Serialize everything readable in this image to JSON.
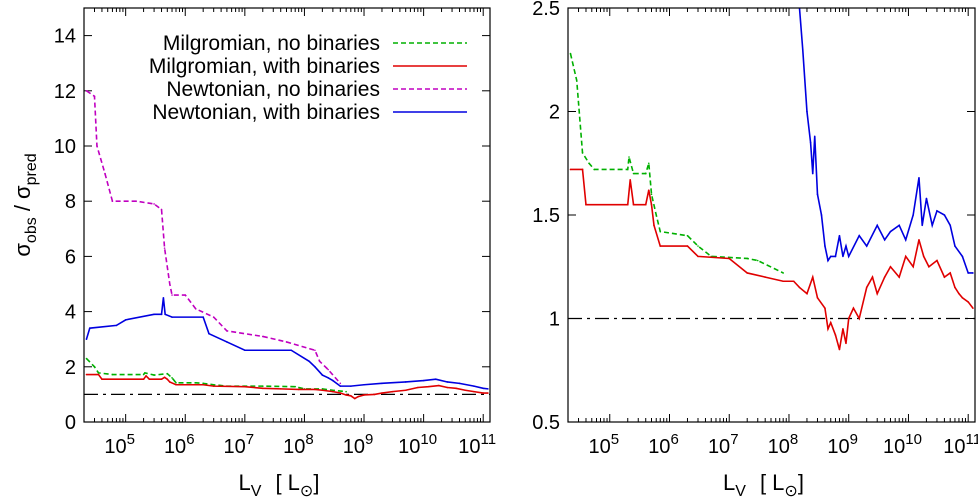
{
  "chart_data": [
    {
      "type": "line",
      "ylabel": "σobs / σpred",
      "xlabel": "LV [L⊙]",
      "x_scale": "log",
      "xlim": [
        20000,
        130000000000
      ],
      "ylim": [
        0,
        15
      ],
      "y_ticks": [
        "0",
        "2",
        "4",
        "6",
        "8",
        "10",
        "12",
        "14"
      ],
      "y_tick_values": [
        0,
        2,
        4,
        6,
        8,
        10,
        12,
        14
      ],
      "x_tick_exponents": [
        "5",
        "6",
        "7",
        "8",
        "9",
        "10",
        "11"
      ],
      "legend_position": "top-right",
      "reference_line": {
        "y": 1,
        "style": "dash-dot",
        "color": "#000000"
      },
      "series": [
        {
          "name": "Milgromian, no binaries",
          "color": "#00b000",
          "dash": "dashed",
          "points": [
            [
              22000,
              2.3
            ],
            [
              30000,
              2.0
            ],
            [
              35000,
              1.78
            ],
            [
              60000,
              1.72
            ],
            [
              200000,
              1.72
            ],
            [
              210000,
              1.78
            ],
            [
              300000,
              1.7
            ],
            [
              500000,
              1.75
            ],
            [
              600000,
              1.6
            ],
            [
              700000,
              1.42
            ],
            [
              1500000,
              1.42
            ],
            [
              2000000,
              1.4
            ],
            [
              3000000,
              1.35
            ],
            [
              5000000,
              1.3
            ],
            [
              10000000,
              1.3
            ],
            [
              20000000,
              1.3
            ],
            [
              70000000,
              1.28
            ],
            [
              100000000,
              1.2
            ],
            [
              200000000,
              1.2
            ],
            [
              300000000,
              1.15
            ],
            [
              500000000,
              1.1
            ]
          ]
        },
        {
          "name": "Milgromian, with binaries",
          "color": "#e00000",
          "dash": "solid",
          "points": [
            [
              22000,
              1.72
            ],
            [
              35000,
              1.72
            ],
            [
              40000,
              1.55
            ],
            [
              200000,
              1.55
            ],
            [
              220000,
              1.67
            ],
            [
              250000,
              1.55
            ],
            [
              400000,
              1.55
            ],
            [
              450000,
              1.62
            ],
            [
              500000,
              1.55
            ],
            [
              550000,
              1.45
            ],
            [
              700000,
              1.35
            ],
            [
              2000000,
              1.35
            ],
            [
              3000000,
              1.3
            ],
            [
              10000000,
              1.28
            ],
            [
              20000000,
              1.22
            ],
            [
              40000000,
              1.2
            ],
            [
              80000000,
              1.18
            ],
            [
              150000000,
              1.18
            ],
            [
              200000000,
              1.15
            ],
            [
              300000000,
              1.1
            ],
            [
              400000000,
              1.05
            ],
            [
              500000000,
              0.98
            ],
            [
              600000000,
              0.95
            ],
            [
              700000000,
              0.85
            ],
            [
              800000000,
              0.92
            ],
            [
              1000000000,
              0.98
            ],
            [
              1500000000,
              1.0
            ],
            [
              2000000000,
              1.05
            ],
            [
              3000000000,
              1.1
            ],
            [
              5000000000,
              1.15
            ],
            [
              8000000000,
              1.25
            ],
            [
              12000000000,
              1.28
            ],
            [
              18000000000,
              1.32
            ],
            [
              25000000000,
              1.25
            ],
            [
              35000000000,
              1.22
            ],
            [
              50000000000,
              1.15
            ],
            [
              70000000000,
              1.1
            ],
            [
              100000000000,
              1.05
            ],
            [
              120000000000,
              1.05
            ]
          ]
        },
        {
          "name": "Newtonian, no binaries",
          "color": "#c000c0",
          "dash": "dashed",
          "points": [
            [
              22000,
              12.0
            ],
            [
              30000,
              11.8
            ],
            [
              33000,
              10.0
            ],
            [
              45000,
              9.0
            ],
            [
              60000,
              8.0
            ],
            [
              150000,
              8.0
            ],
            [
              300000,
              7.9
            ],
            [
              400000,
              7.7
            ],
            [
              450000,
              6.3
            ],
            [
              550000,
              5.0
            ],
            [
              600000,
              4.6
            ],
            [
              1000000,
              4.6
            ],
            [
              1500000,
              4.1
            ],
            [
              3000000,
              3.8
            ],
            [
              5000000,
              3.3
            ],
            [
              20000000,
              3.1
            ],
            [
              50000000,
              2.9
            ],
            [
              150000000,
              2.6
            ],
            [
              180000000,
              2.2
            ],
            [
              250000000,
              1.9
            ],
            [
              400000000,
              1.4
            ]
          ]
        },
        {
          "name": "Newtonian, with binaries",
          "color": "#0000e0",
          "dash": "solid",
          "points": [
            [
              22000,
              3.0
            ],
            [
              25000,
              3.4
            ],
            [
              70000,
              3.5
            ],
            [
              100000,
              3.7
            ],
            [
              300000,
              3.9
            ],
            [
              400000,
              3.9
            ],
            [
              430000,
              4.5
            ],
            [
              460000,
              3.9
            ],
            [
              600000,
              3.8
            ],
            [
              2000000,
              3.8
            ],
            [
              2500000,
              3.2
            ],
            [
              5000000,
              2.9
            ],
            [
              10000000,
              2.6
            ],
            [
              60000000,
              2.6
            ],
            [
              120000000,
              2.2
            ],
            [
              150000000,
              2.0
            ],
            [
              200000000,
              1.7
            ],
            [
              250000000,
              1.6
            ],
            [
              300000000,
              1.5
            ],
            [
              400000000,
              1.3
            ],
            [
              600000000,
              1.3
            ],
            [
              1000000000,
              1.35
            ],
            [
              2000000000,
              1.4
            ],
            [
              5000000000,
              1.45
            ],
            [
              10000000000,
              1.5
            ],
            [
              16000000000,
              1.55
            ],
            [
              25000000000,
              1.45
            ],
            [
              40000000000,
              1.4
            ],
            [
              70000000000,
              1.3
            ],
            [
              100000000000,
              1.22
            ],
            [
              120000000000,
              1.2
            ]
          ]
        }
      ]
    },
    {
      "type": "line",
      "xlabel": "LV [L⊙]",
      "x_scale": "log",
      "xlim": [
        20000,
        130000000000
      ],
      "ylim": [
        0.5,
        2.5
      ],
      "y_ticks": [
        "0.5",
        "1",
        "1.5",
        "2",
        "2.5"
      ],
      "y_tick_values": [
        0.5,
        1,
        1.5,
        2,
        2.5
      ],
      "x_tick_exponents": [
        "5",
        "6",
        "7",
        "8",
        "9",
        "10",
        "11"
      ],
      "reference_line": {
        "y": 1,
        "style": "dash-dot",
        "color": "#000000"
      },
      "series": [
        {
          "color": "#00b000",
          "dash": "dashed",
          "points": [
            [
              22000,
              2.28
            ],
            [
              28000,
              2.15
            ],
            [
              35000,
              1.8
            ],
            [
              45000,
              1.75
            ],
            [
              55000,
              1.72
            ],
            [
              200000,
              1.72
            ],
            [
              210000,
              1.78
            ],
            [
              250000,
              1.7
            ],
            [
              400000,
              1.7
            ],
            [
              450000,
              1.75
            ],
            [
              500000,
              1.6
            ],
            [
              600000,
              1.5
            ],
            [
              700000,
              1.42
            ],
            [
              2000000,
              1.4
            ],
            [
              3000000,
              1.35
            ],
            [
              5000000,
              1.3
            ],
            [
              20000000,
              1.29
            ],
            [
              30000000,
              1.28
            ],
            [
              80000000,
              1.22
            ]
          ]
        },
        {
          "color": "#e00000",
          "dash": "solid",
          "points": [
            [
              22000,
              1.72
            ],
            [
              35000,
              1.72
            ],
            [
              40000,
              1.55
            ],
            [
              200000,
              1.55
            ],
            [
              220000,
              1.67
            ],
            [
              250000,
              1.55
            ],
            [
              400000,
              1.55
            ],
            [
              450000,
              1.62
            ],
            [
              500000,
              1.55
            ],
            [
              550000,
              1.45
            ],
            [
              700000,
              1.35
            ],
            [
              2000000,
              1.35
            ],
            [
              3000000,
              1.3
            ],
            [
              10000000,
              1.29
            ],
            [
              20000000,
              1.22
            ],
            [
              40000000,
              1.2
            ],
            [
              80000000,
              1.18
            ],
            [
              120000000,
              1.18
            ],
            [
              150000000,
              1.15
            ],
            [
              200000000,
              1.12
            ],
            [
              250000000,
              1.2
            ],
            [
              300000000,
              1.1
            ],
            [
              400000000,
              1.05
            ],
            [
              450000000,
              0.95
            ],
            [
              500000000,
              0.98
            ],
            [
              600000000,
              0.92
            ],
            [
              700000000,
              0.85
            ],
            [
              800000000,
              0.95
            ],
            [
              900000000,
              0.88
            ],
            [
              1000000000,
              1.0
            ],
            [
              1200000000,
              1.05
            ],
            [
              1500000000,
              1.0
            ],
            [
              2000000000,
              1.15
            ],
            [
              2500000000,
              1.2
            ],
            [
              3000000000,
              1.12
            ],
            [
              4000000000,
              1.2
            ],
            [
              5000000000,
              1.25
            ],
            [
              7000000000,
              1.2
            ],
            [
              9000000000,
              1.3
            ],
            [
              12000000000,
              1.25
            ],
            [
              15000000000,
              1.38
            ],
            [
              18000000000,
              1.3
            ],
            [
              22000000000,
              1.25
            ],
            [
              30000000000,
              1.28
            ],
            [
              40000000000,
              1.2
            ],
            [
              50000000000,
              1.22
            ],
            [
              60000000000,
              1.15
            ],
            [
              70000000000,
              1.12
            ],
            [
              80000000000,
              1.1
            ],
            [
              100000000000,
              1.08
            ],
            [
              120000000000,
              1.05
            ]
          ]
        },
        {
          "color": "#0000e0",
          "dash": "solid",
          "points": [
            [
              150000000,
              2.5
            ],
            [
              170000000,
              2.3
            ],
            [
              200000000,
              2.0
            ],
            [
              230000000,
              1.85
            ],
            [
              250000000,
              1.7
            ],
            [
              270000000,
              1.88
            ],
            [
              300000000,
              1.6
            ],
            [
              350000000,
              1.5
            ],
            [
              400000000,
              1.35
            ],
            [
              450000000,
              1.28
            ],
            [
              500000000,
              1.3
            ],
            [
              600000000,
              1.3
            ],
            [
              700000000,
              1.4
            ],
            [
              800000000,
              1.3
            ],
            [
              900000000,
              1.35
            ],
            [
              1000000000,
              1.3
            ],
            [
              1500000000,
              1.4
            ],
            [
              2000000000,
              1.35
            ],
            [
              3000000000,
              1.45
            ],
            [
              4000000000,
              1.38
            ],
            [
              5000000000,
              1.42
            ],
            [
              7000000000,
              1.45
            ],
            [
              9000000000,
              1.38
            ],
            [
              12000000000,
              1.5
            ],
            [
              15000000000,
              1.68
            ],
            [
              17000000000,
              1.45
            ],
            [
              20000000000,
              1.58
            ],
            [
              25000000000,
              1.45
            ],
            [
              30000000000,
              1.52
            ],
            [
              40000000000,
              1.5
            ],
            [
              50000000000,
              1.45
            ],
            [
              60000000000,
              1.35
            ],
            [
              80000000000,
              1.3
            ],
            [
              100000000000,
              1.22
            ],
            [
              120000000000,
              1.22
            ]
          ]
        }
      ]
    }
  ]
}
